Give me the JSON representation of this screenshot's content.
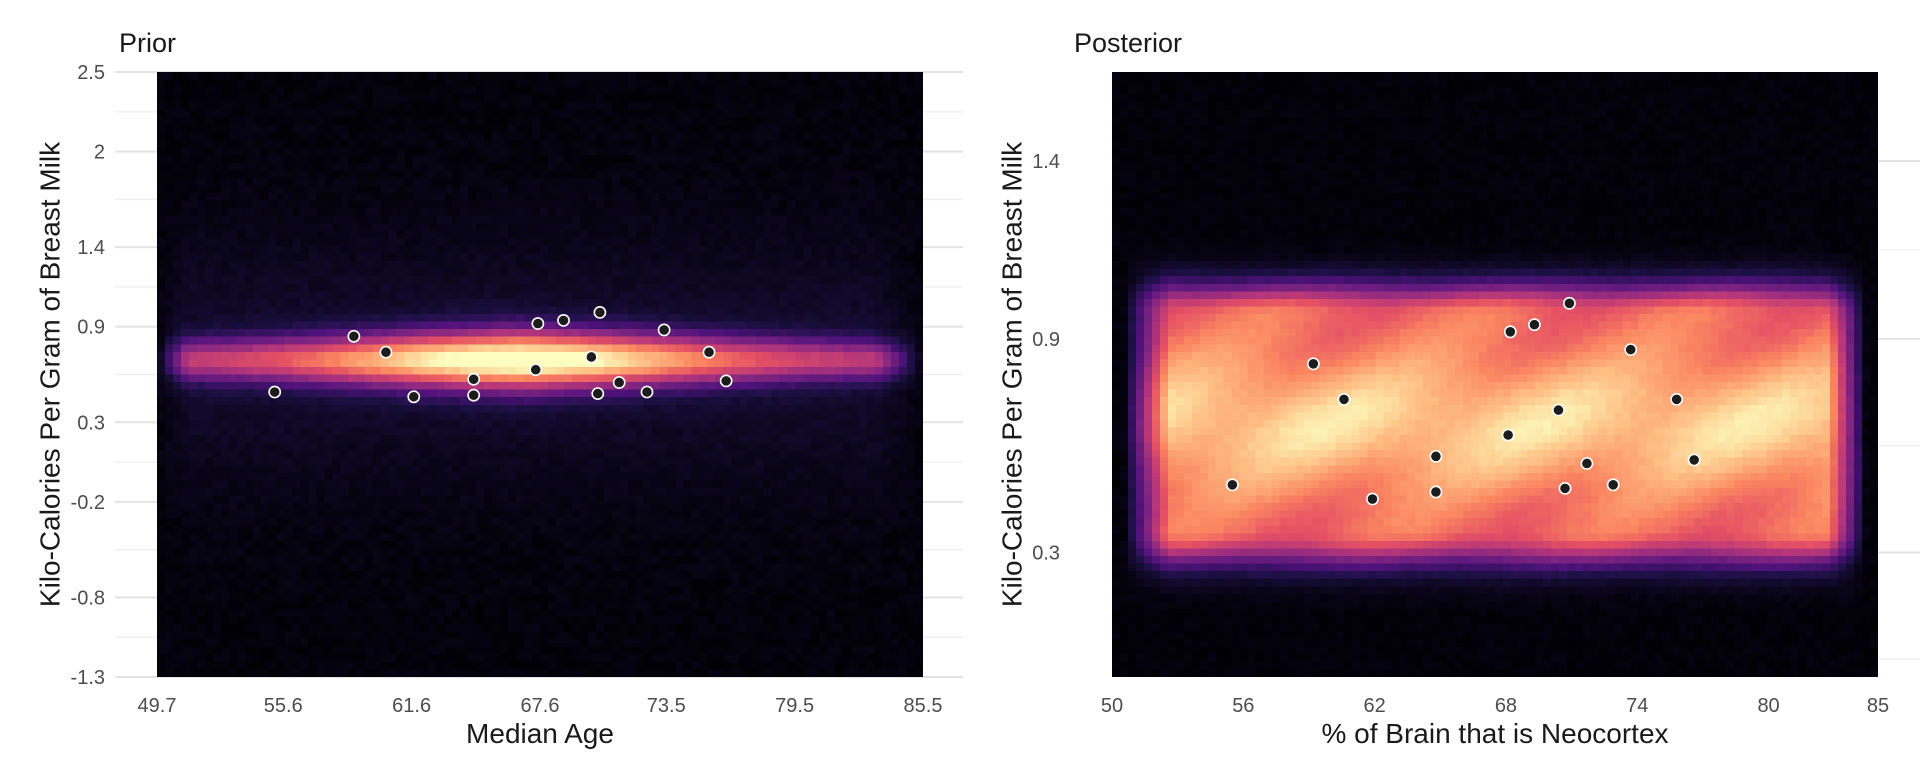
{
  "chart_data": [
    {
      "type": "heatmap",
      "title": "Prior",
      "xlabel": "Median Age",
      "ylabel": "Kilo-Calories Per Gram of Breast Milk",
      "xlim": [
        49.7,
        85.5
      ],
      "ylim": [
        -1.3,
        2.5
      ],
      "xticks": [
        49.7,
        55.6,
        61.6,
        67.6,
        73.5,
        79.5,
        85.5
      ],
      "xtick_labels": [
        "49.7",
        "55.6",
        "61.6",
        "67.6",
        "73.5",
        "79.5",
        "85.5"
      ],
      "yticks": [
        -1.3,
        -0.8,
        -0.2,
        0.3,
        0.9,
        1.4,
        2,
        2.5
      ],
      "ytick_labels": [
        "-1.3",
        "-0.8",
        "-0.2",
        "0.3",
        "0.9",
        "1.4",
        "2",
        "2.5"
      ],
      "grid": true,
      "colormap": "magma",
      "density_center_y": 0.69,
      "points": [
        {
          "x": 55.2,
          "y": 0.49
        },
        {
          "x": 58.9,
          "y": 0.84
        },
        {
          "x": 60.4,
          "y": 0.74
        },
        {
          "x": 61.7,
          "y": 0.46
        },
        {
          "x": 64.5,
          "y": 0.57
        },
        {
          "x": 64.5,
          "y": 0.47
        },
        {
          "x": 67.5,
          "y": 0.92
        },
        {
          "x": 67.4,
          "y": 0.63
        },
        {
          "x": 68.7,
          "y": 0.94
        },
        {
          "x": 70.0,
          "y": 0.71
        },
        {
          "x": 70.3,
          "y": 0.48
        },
        {
          "x": 70.4,
          "y": 0.99
        },
        {
          "x": 71.3,
          "y": 0.55
        },
        {
          "x": 72.6,
          "y": 0.49
        },
        {
          "x": 73.4,
          "y": 0.88
        },
        {
          "x": 75.5,
          "y": 0.74
        },
        {
          "x": 76.3,
          "y": 0.56
        }
      ]
    },
    {
      "type": "heatmap",
      "title": "Posterior",
      "xlabel": "% of Brain that is Neocortex",
      "ylabel": "Kilo-Calories Per Gram of Breast Milk",
      "xlim": [
        50,
        85
      ],
      "ylim": [
        -0.05,
        1.65
      ],
      "xticks": [
        50,
        56,
        62,
        68,
        74,
        80,
        85
      ],
      "xtick_labels": [
        "50",
        "56",
        "62",
        "68",
        "74",
        "80",
        "85"
      ],
      "yticks": [
        0.3,
        0.9,
        1.4
      ],
      "ytick_labels": [
        "0.3",
        "0.9",
        "1.4"
      ],
      "grid": true,
      "colormap": "magma",
      "density_center_y": 0.66,
      "points": [
        {
          "x": 55.5,
          "y": 0.49
        },
        {
          "x": 59.2,
          "y": 0.83
        },
        {
          "x": 60.6,
          "y": 0.73
        },
        {
          "x": 61.9,
          "y": 0.45
        },
        {
          "x": 64.8,
          "y": 0.57
        },
        {
          "x": 64.8,
          "y": 0.47
        },
        {
          "x": 68.1,
          "y": 0.63
        },
        {
          "x": 68.2,
          "y": 0.92
        },
        {
          "x": 69.3,
          "y": 0.94
        },
        {
          "x": 70.4,
          "y": 0.7
        },
        {
          "x": 70.7,
          "y": 0.48
        },
        {
          "x": 70.9,
          "y": 1.0
        },
        {
          "x": 71.7,
          "y": 0.55
        },
        {
          "x": 72.9,
          "y": 0.49
        },
        {
          "x": 73.7,
          "y": 0.87
        },
        {
          "x": 75.8,
          "y": 0.73
        },
        {
          "x": 76.6,
          "y": 0.56
        }
      ]
    }
  ]
}
